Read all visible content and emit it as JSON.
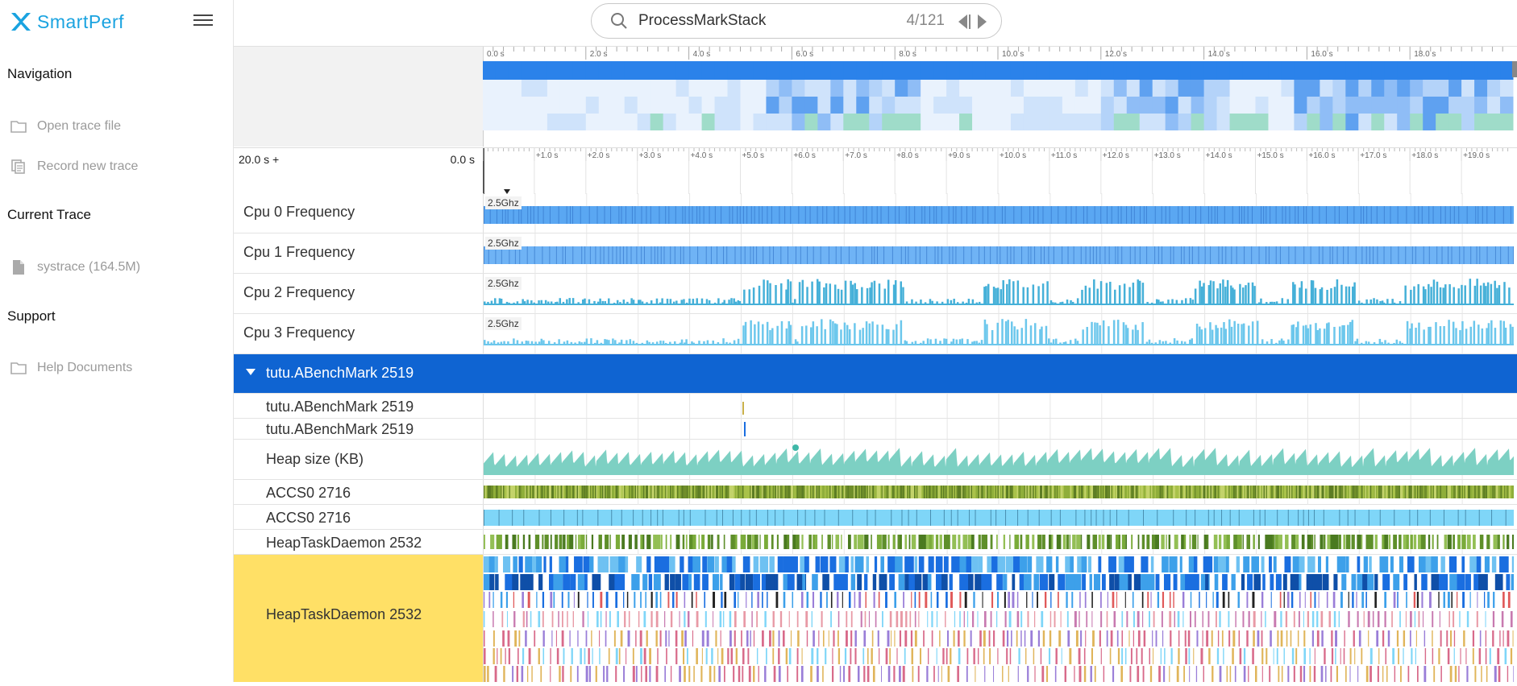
{
  "app": {
    "name": "SmartPerf",
    "brand_color": "#1aa3e0"
  },
  "sidebar": {
    "sections": [
      {
        "title": "Navigation",
        "items": [
          {
            "label": "Open trace file",
            "icon": "folder-icon"
          },
          {
            "label": "Record new trace",
            "icon": "copy-icon"
          }
        ]
      },
      {
        "title": "Current Trace",
        "items": [
          {
            "label": "systrace (164.5M)",
            "icon": "file-icon"
          }
        ]
      },
      {
        "title": "Support",
        "items": [
          {
            "label": "Help Documents",
            "icon": "folder-icon"
          }
        ]
      }
    ]
  },
  "search": {
    "value": "ProcessMarkStack",
    "count": "4/121"
  },
  "overview": {
    "tick_labels": [
      "0.0 s",
      "2.0 s",
      "4.0 s",
      "6.0 s",
      "8.0 s",
      "10.0 s",
      "12.0 s",
      "14.0 s",
      "16.0 s",
      "18.0 s"
    ]
  },
  "ruler": {
    "range_start": "20.0 s +",
    "range_end": "0.0 s",
    "tick_labels": [
      "+1.0 s",
      "+2.0 s",
      "+3.0 s",
      "+4.0 s",
      "+5.0 s",
      "+6.0 s",
      "+7.0 s",
      "+8.0 s",
      "+9.0 s",
      "+10.0 s",
      "+11.0 s",
      "+12.0 s",
      "+13.0 s",
      "+14.0 s",
      "+15.0 s",
      "+16.0 s",
      "+17.0 s",
      "+18.0 s",
      "+19.0 s"
    ]
  },
  "tracks": {
    "cpu": [
      {
        "label": "Cpu 0 Frequency",
        "max": "2.5Ghz",
        "color": "#5aa7f2"
      },
      {
        "label": "Cpu 1 Frequency",
        "max": "2.5Ghz",
        "color": "#6fb3f5"
      },
      {
        "label": "Cpu 2 Frequency",
        "max": "2.5Ghz",
        "color": "#45b0d8"
      },
      {
        "label": "Cpu 3 Frequency",
        "max": "2.5Ghz",
        "color": "#6cc7ec"
      }
    ],
    "process": {
      "label": "tutu.ABenchMark 2519",
      "color": "#0f64d2"
    },
    "threads": [
      {
        "label": "tutu.ABenchMark 2519"
      },
      {
        "label": "tutu.ABenchMark 2519"
      },
      {
        "label": "Heap size (KB)",
        "color": "#7dd0c3"
      },
      {
        "label": "ACCS0 2716",
        "color": "#8fae3a"
      },
      {
        "label": "ACCS0 2716",
        "color": "#7fd6f8"
      },
      {
        "label": "HeapTaskDaemon 2532",
        "color": "#5e8f2a"
      },
      {
        "label": "HeapTaskDaemon 2532",
        "highlight": "#ffe066"
      }
    ]
  }
}
